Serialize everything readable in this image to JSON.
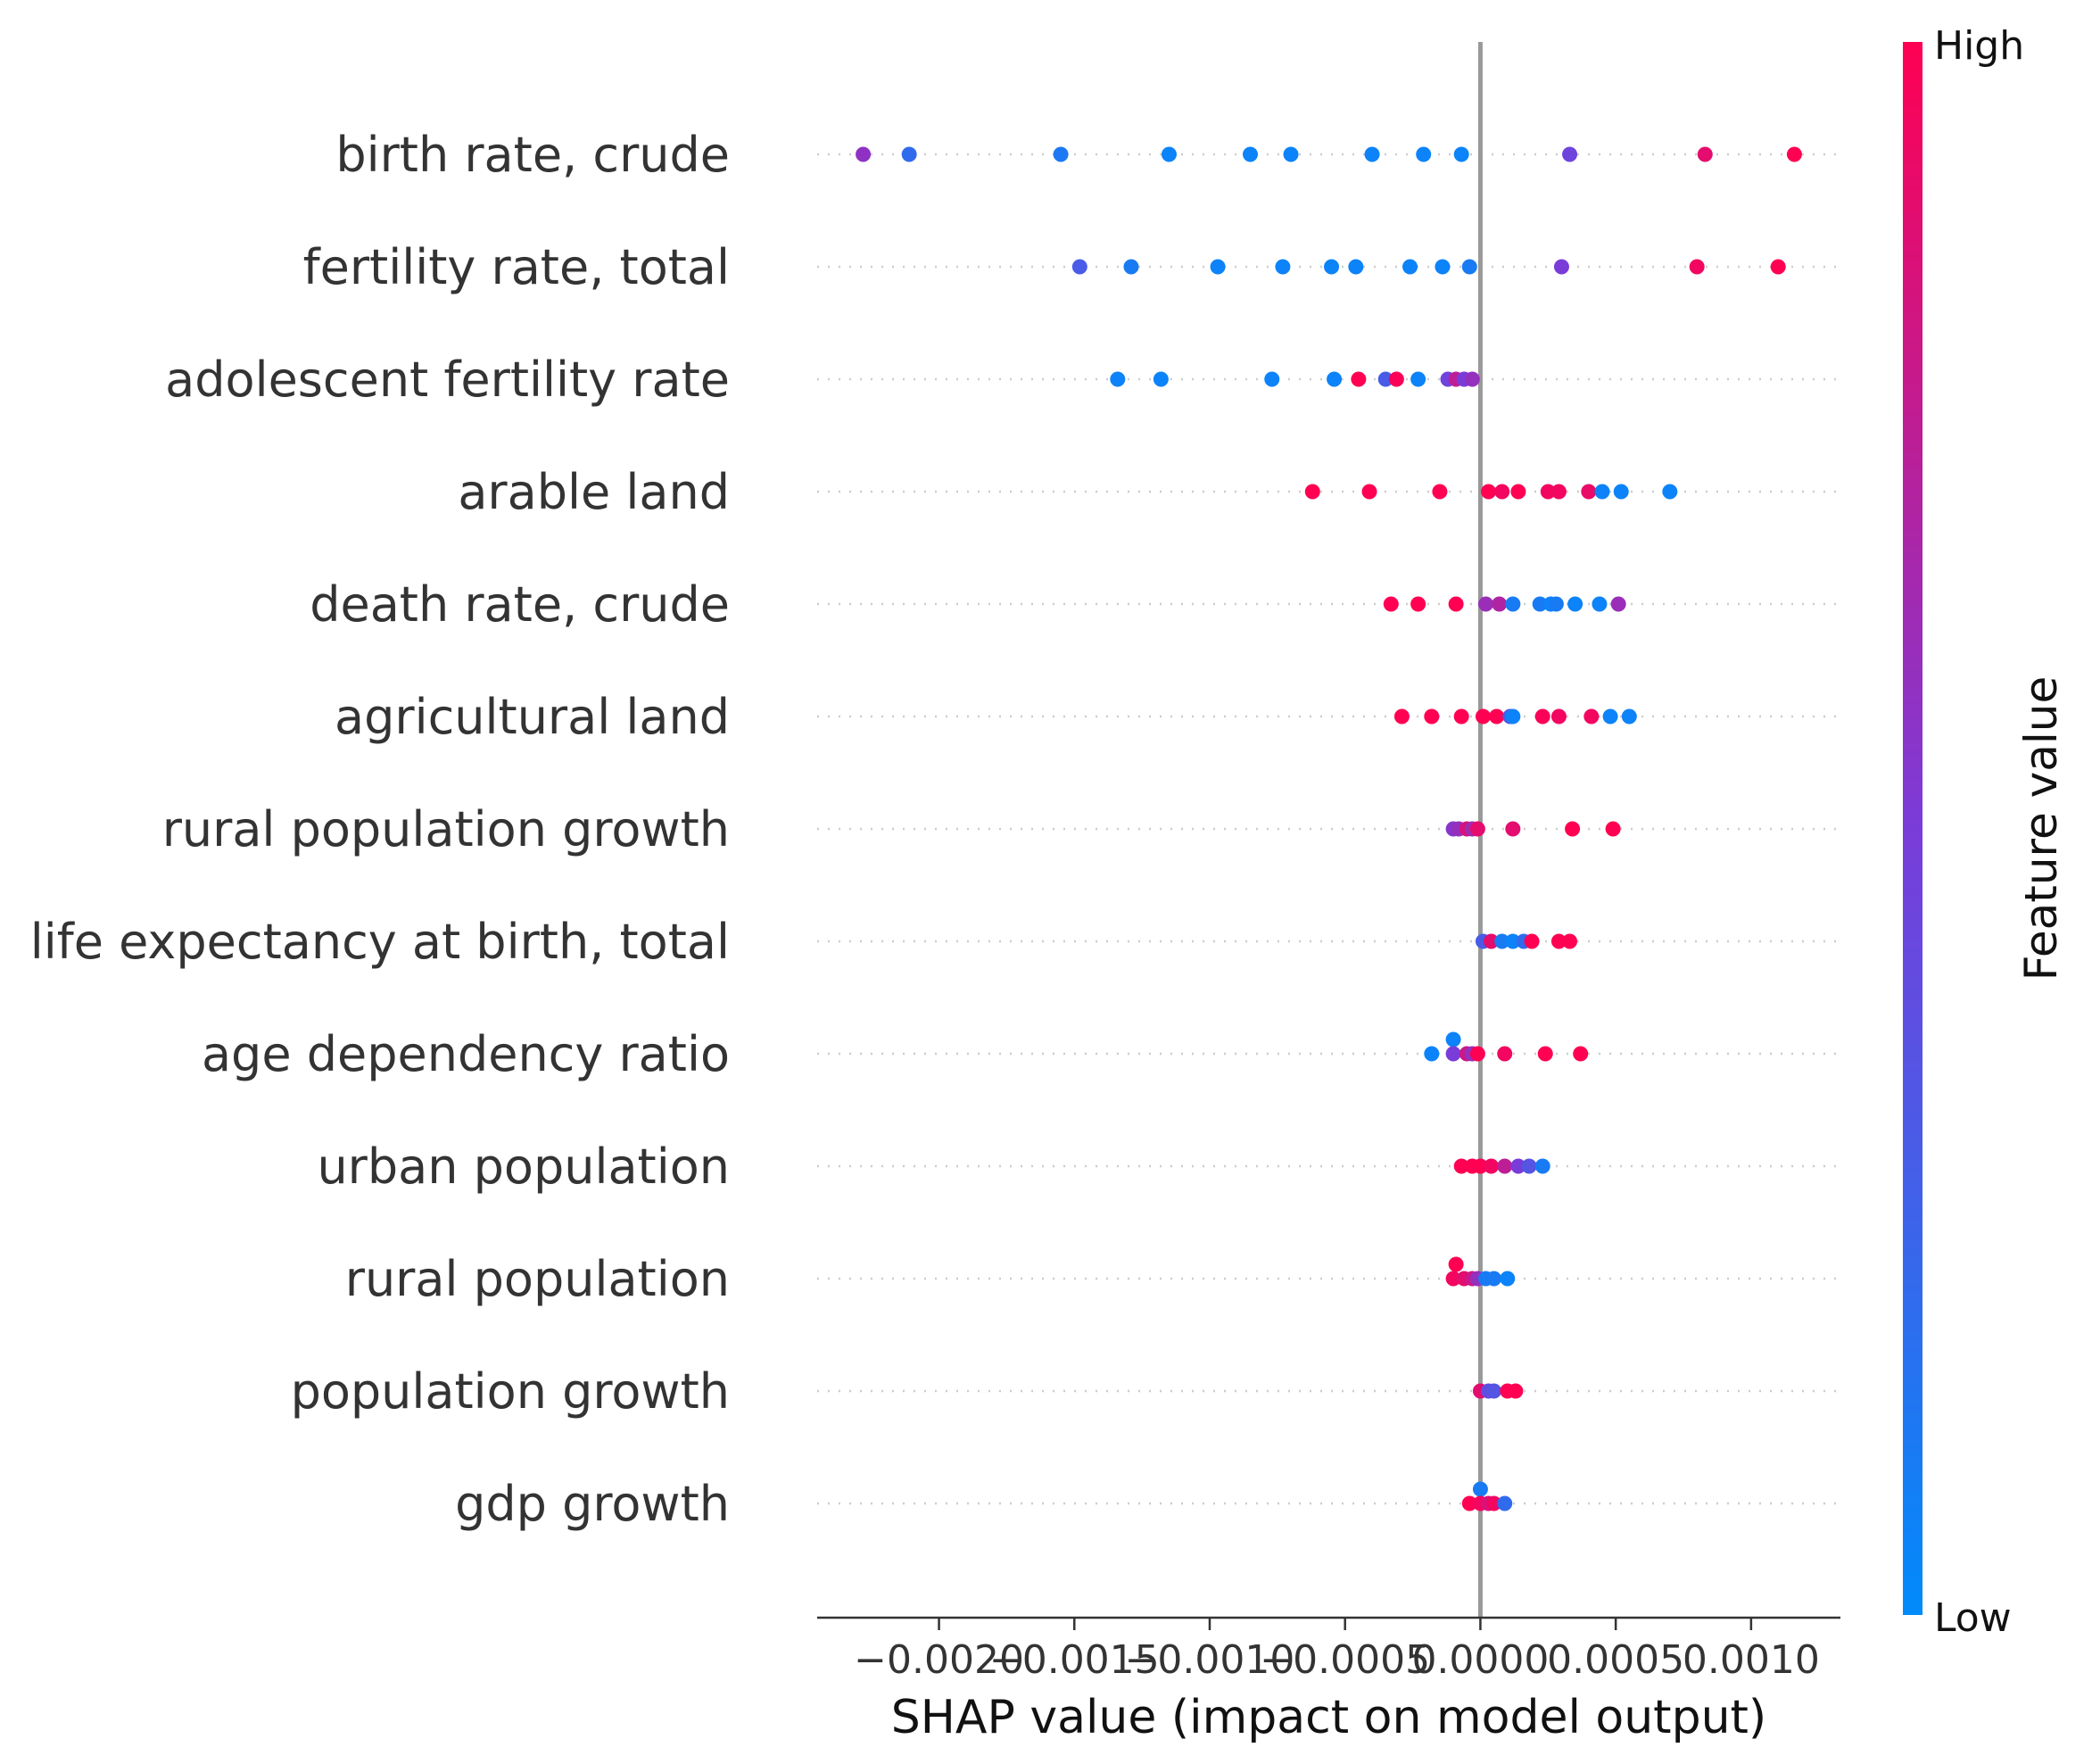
{
  "chart_data": {
    "type": "scatter",
    "xlabel": "SHAP value (impact on model output)",
    "xlim": [
      -0.00245,
      0.00133
    ],
    "x_ticks": [
      -0.002,
      -0.0015,
      -0.001,
      -0.0005,
      0.0,
      0.0005,
      0.001
    ],
    "x_tick_labels": [
      "−0.0020",
      "−0.0015",
      "−0.0010",
      "−0.0005",
      "0.0000",
      "0.0005",
      "0.0010"
    ],
    "colorbar": {
      "title": "Feature value",
      "high_label": "High",
      "low_label": "Low",
      "low_color": "#008bfb",
      "high_color": "#ff0052"
    },
    "zero_line_color": "#999999",
    "features": [
      {
        "name": "birth rate, crude",
        "points": [
          {
            "x": -0.00228,
            "v": 0.58
          },
          {
            "x": -0.00211,
            "v": 0.2
          },
          {
            "x": -0.00155,
            "v": 0.12
          },
          {
            "x": -0.00115,
            "v": 0.05
          },
          {
            "x": -0.00085,
            "v": 0.05
          },
          {
            "x": -0.0007,
            "v": 0.05
          },
          {
            "x": -0.0004,
            "v": 0.05
          },
          {
            "x": -0.00021,
            "v": 0.05
          },
          {
            "x": -7e-05,
            "v": 0.05
          },
          {
            "x": 0.00033,
            "v": 0.45
          },
          {
            "x": 0.00083,
            "v": 0.9
          },
          {
            "x": 0.00116,
            "v": 1.0
          }
        ]
      },
      {
        "name": "fertility rate, total",
        "points": [
          {
            "x": -0.00148,
            "v": 0.3
          },
          {
            "x": -0.00129,
            "v": 0.1
          },
          {
            "x": -0.00097,
            "v": 0.05
          },
          {
            "x": -0.00073,
            "v": 0.05
          },
          {
            "x": -0.00055,
            "v": 0.05
          },
          {
            "x": -0.00046,
            "v": 0.05
          },
          {
            "x": -0.00026,
            "v": 0.05
          },
          {
            "x": -0.00014,
            "v": 0.05
          },
          {
            "x": -4e-05,
            "v": 0.1
          },
          {
            "x": 0.0003,
            "v": 0.5
          },
          {
            "x": 0.0008,
            "v": 0.95
          },
          {
            "x": 0.0011,
            "v": 1.0
          }
        ]
      },
      {
        "name": "adolescent fertility rate",
        "points": [
          {
            "x": -0.00134,
            "v": 0.05
          },
          {
            "x": -0.00118,
            "v": 0.05
          },
          {
            "x": -0.00077,
            "v": 0.05
          },
          {
            "x": -0.00054,
            "v": 0.05
          },
          {
            "x": -0.00045,
            "v": 1.0
          },
          {
            "x": -0.00035,
            "v": 0.3
          },
          {
            "x": -0.00031,
            "v": 0.98
          },
          {
            "x": -0.00023,
            "v": 0.05
          },
          {
            "x": -0.00012,
            "v": 0.45
          },
          {
            "x": -9e-05,
            "v": 0.75
          },
          {
            "x": -6e-05,
            "v": 0.5
          },
          {
            "x": -3e-05,
            "v": 0.6
          }
        ]
      },
      {
        "name": "arable land",
        "points": [
          {
            "x": -0.00062,
            "v": 1.0
          },
          {
            "x": -0.00041,
            "v": 1.0
          },
          {
            "x": -0.00015,
            "v": 1.0
          },
          {
            "x": 3e-05,
            "v": 1.0
          },
          {
            "x": 8e-05,
            "v": 0.95
          },
          {
            "x": 0.00014,
            "v": 1.0
          },
          {
            "x": 0.00025,
            "v": 0.95
          },
          {
            "x": 0.00029,
            "v": 0.95
          },
          {
            "x": 0.0004,
            "v": 0.92
          },
          {
            "x": 0.00045,
            "v": 0.05
          },
          {
            "x": 0.00052,
            "v": 0.05
          },
          {
            "x": 0.0007,
            "v": 0.05
          }
        ]
      },
      {
        "name": "death rate, crude",
        "points": [
          {
            "x": -0.00033,
            "v": 1.0
          },
          {
            "x": -0.00023,
            "v": 1.0
          },
          {
            "x": -9e-05,
            "v": 1.0
          },
          {
            "x": 2e-05,
            "v": 0.62
          },
          {
            "x": 7e-05,
            "v": 0.7
          },
          {
            "x": 0.00012,
            "v": 0.1
          },
          {
            "x": 0.00022,
            "v": 0.1
          },
          {
            "x": 0.00026,
            "v": 0.05
          },
          {
            "x": 0.00028,
            "v": 0.1
          },
          {
            "x": 0.00035,
            "v": 0.05
          },
          {
            "x": 0.00044,
            "v": 0.05
          },
          {
            "x": 0.00051,
            "v": 0.62
          }
        ]
      },
      {
        "name": "agricultural land",
        "points": [
          {
            "x": -0.00029,
            "v": 1.0
          },
          {
            "x": -0.00018,
            "v": 1.0
          },
          {
            "x": -7e-05,
            "v": 1.0
          },
          {
            "x": 1e-05,
            "v": 1.0
          },
          {
            "x": 6e-05,
            "v": 1.0
          },
          {
            "x": 0.00011,
            "v": 0.35
          },
          {
            "x": 0.00012,
            "v": 0.05
          },
          {
            "x": 0.00023,
            "v": 0.98
          },
          {
            "x": 0.00029,
            "v": 0.95
          },
          {
            "x": 0.00041,
            "v": 0.95
          },
          {
            "x": 0.00048,
            "v": 0.05
          },
          {
            "x": 0.00055,
            "v": 0.05
          }
        ]
      },
      {
        "name": "rural population growth",
        "points": [
          {
            "x": -0.0001,
            "v": 0.55
          },
          {
            "x": -8e-05,
            "v": 0.6
          },
          {
            "x": -5e-05,
            "v": 0.85
          },
          {
            "x": -3e-05,
            "v": 0.65
          },
          {
            "x": -1e-05,
            "v": 0.9
          },
          {
            "x": 0.00012,
            "v": 0.9
          },
          {
            "x": 0.00034,
            "v": 1.0
          },
          {
            "x": 0.00049,
            "v": 1.0
          }
        ]
      },
      {
        "name": "life expectancy at birth, total",
        "points": [
          {
            "x": 1e-05,
            "v": 0.3
          },
          {
            "x": 4e-05,
            "v": 0.9
          },
          {
            "x": 8e-05,
            "v": 0.1
          },
          {
            "x": 0.00012,
            "v": 0.05
          },
          {
            "x": 0.00016,
            "v": 0.2
          },
          {
            "x": 0.00019,
            "v": 1.0
          },
          {
            "x": 0.00029,
            "v": 1.0
          },
          {
            "x": 0.00033,
            "v": 1.0
          }
        ]
      },
      {
        "name": "age dependency ratio",
        "points": [
          {
            "x": -0.0001,
            "v": 0.05,
            "dy": -16
          },
          {
            "x": -0.00018,
            "v": 0.05
          },
          {
            "x": -0.0001,
            "v": 0.5
          },
          {
            "x": -5e-05,
            "v": 0.8
          },
          {
            "x": -3e-05,
            "v": 0.6
          },
          {
            "x": -1e-05,
            "v": 1.0
          },
          {
            "x": 9e-05,
            "v": 0.95
          },
          {
            "x": 0.00024,
            "v": 1.0
          },
          {
            "x": 0.00037,
            "v": 1.0
          }
        ]
      },
      {
        "name": "urban population",
        "points": [
          {
            "x": -7e-05,
            "v": 1.0
          },
          {
            "x": -3e-05,
            "v": 1.0
          },
          {
            "x": 0.0,
            "v": 1.0
          },
          {
            "x": 4e-05,
            "v": 0.95
          },
          {
            "x": 9e-05,
            "v": 0.75
          },
          {
            "x": 0.00014,
            "v": 0.5
          },
          {
            "x": 0.00018,
            "v": 0.35
          },
          {
            "x": 0.00023,
            "v": 0.1
          }
        ]
      },
      {
        "name": "rural population",
        "points": [
          {
            "x": -9e-05,
            "v": 1.0,
            "dy": -16
          },
          {
            "x": -0.0001,
            "v": 0.95
          },
          {
            "x": -6e-05,
            "v": 0.9
          },
          {
            "x": -3e-05,
            "v": 0.8
          },
          {
            "x": -1e-05,
            "v": 0.6
          },
          {
            "x": 2e-05,
            "v": 0.1
          },
          {
            "x": 5e-05,
            "v": 0.1
          },
          {
            "x": 0.0001,
            "v": 0.05
          }
        ]
      },
      {
        "name": "population growth",
        "points": [
          {
            "x": 0.0,
            "v": 0.9
          },
          {
            "x": 3e-05,
            "v": 0.4
          },
          {
            "x": 5e-05,
            "v": 0.35
          },
          {
            "x": 0.0001,
            "v": 1.0
          },
          {
            "x": 0.00013,
            "v": 1.0
          }
        ]
      },
      {
        "name": "gdp growth",
        "points": [
          {
            "x": 0.0,
            "v": 0.1,
            "dy": -16
          },
          {
            "x": -4e-05,
            "v": 1.0
          },
          {
            "x": 0.0,
            "v": 0.95
          },
          {
            "x": 3e-05,
            "v": 0.85
          },
          {
            "x": 5e-05,
            "v": 0.95
          },
          {
            "x": 9e-05,
            "v": 0.2
          }
        ]
      }
    ]
  }
}
